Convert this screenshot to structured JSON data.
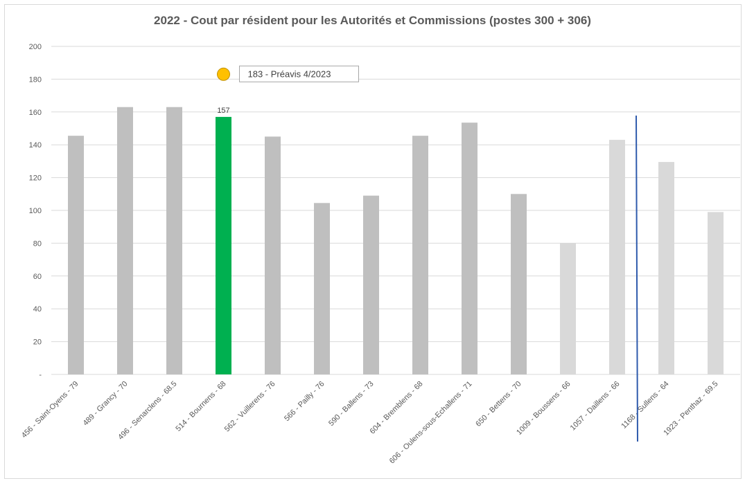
{
  "chart_data": {
    "type": "bar",
    "title": "2022 - Cout par résident  pour les Autorités et Commissions (postes 300 + 306)",
    "xlabel": "",
    "ylabel": "",
    "ylim": [
      0,
      200
    ],
    "yticks": [
      0,
      20,
      40,
      60,
      80,
      100,
      120,
      140,
      160,
      180,
      200
    ],
    "ytick_labels": [
      "-",
      "20",
      "40",
      "60",
      "80",
      "100",
      "120",
      "140",
      "160",
      "180",
      "200"
    ],
    "grid": true,
    "legend": "none",
    "categories": [
      "456 - Saint-Oyens - 79",
      "489 - Grancy - 70",
      "496 - Senarclens - 68.5",
      "514 - Bournens - 68",
      "562 - Vuillerens - 76",
      "566 - Pailly - 76",
      "590 - Ballens - 73",
      "604 - Bremblens - 68",
      "606 - Oulens-sous-Echallens - 71",
      "650 - Bettens - 70",
      "1009 - Boussens - 66",
      "1057 - Daillens - 66",
      "1168 - Sullens - 64",
      "1923 - Penthaz - 69.5"
    ],
    "values": [
      145.5,
      163,
      163,
      157,
      145,
      104.5,
      109,
      145.5,
      153.5,
      110,
      80,
      143,
      129.5,
      99
    ],
    "bar_colors": [
      "#bfbfbf",
      "#bfbfbf",
      "#bfbfbf",
      "#00b050",
      "#bfbfbf",
      "#bfbfbf",
      "#bfbfbf",
      "#bfbfbf",
      "#bfbfbf",
      "#bfbfbf",
      "#d9d9d9",
      "#d9d9d9",
      "#d9d9d9",
      "#d9d9d9"
    ],
    "data_labels": [
      {
        "category_index": 3,
        "text": "157"
      }
    ],
    "annotations": [
      {
        "type": "point",
        "category_index": 3,
        "value": 183,
        "color": "#ffc000",
        "text": "183 - Préavis 4/2023"
      }
    ],
    "separator_line": {
      "between_categories": [
        11,
        12
      ],
      "color": "#2e5aac"
    }
  }
}
